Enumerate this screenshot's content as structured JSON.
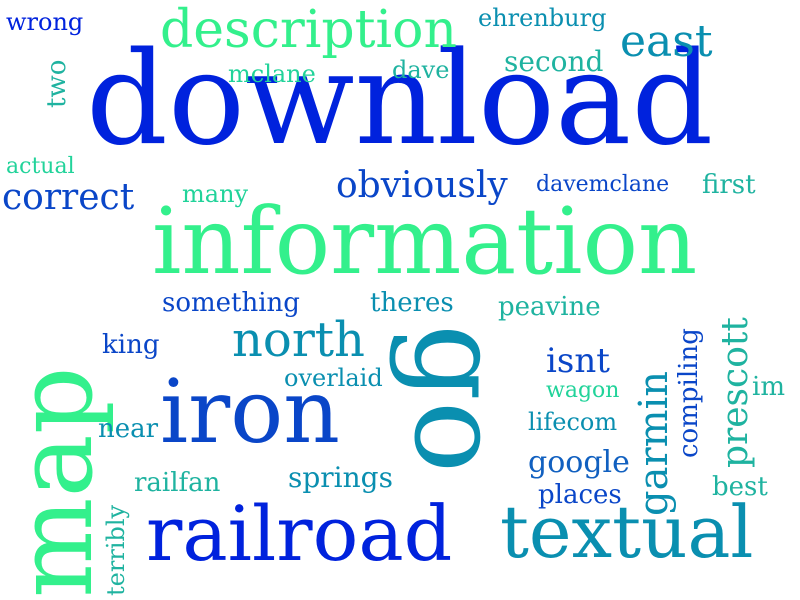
{
  "words": {
    "download": "download",
    "information": "information",
    "map": "map",
    "go": "go",
    "iron": "iron",
    "railroad": "railroad",
    "textual": "textual",
    "description": "description",
    "north": "north",
    "east": "east",
    "obviously": "obviously",
    "correct": "correct",
    "garmin": "garmin",
    "prescott": "prescott",
    "isnt": "isnt",
    "wrong": "wrong",
    "ehrenburg": "ehrenburg",
    "second": "second",
    "mclane": "mclane",
    "dave": "dave",
    "two": "two",
    "actual": "actual",
    "many": "many",
    "davemclane": "davemclane",
    "first": "first",
    "something": "something",
    "theres": "theres",
    "peavine": "peavine",
    "king": "king",
    "overlaid": "overlaid",
    "wagon": "wagon",
    "compiling": "compiling",
    "im": "im",
    "near": "near",
    "lifecom": "lifecom",
    "google": "google",
    "railfan": "railfan",
    "springs": "springs",
    "places": "places",
    "best": "best",
    "terribly": "terribly"
  },
  "colors": {
    "blue": "#0022dd",
    "royal": "#0a46c8",
    "azure": "#1160c0",
    "teal": "#0a8fb0",
    "sea": "#1fb3a0",
    "mint": "#22d39a",
    "spring": "#33f08c"
  }
}
